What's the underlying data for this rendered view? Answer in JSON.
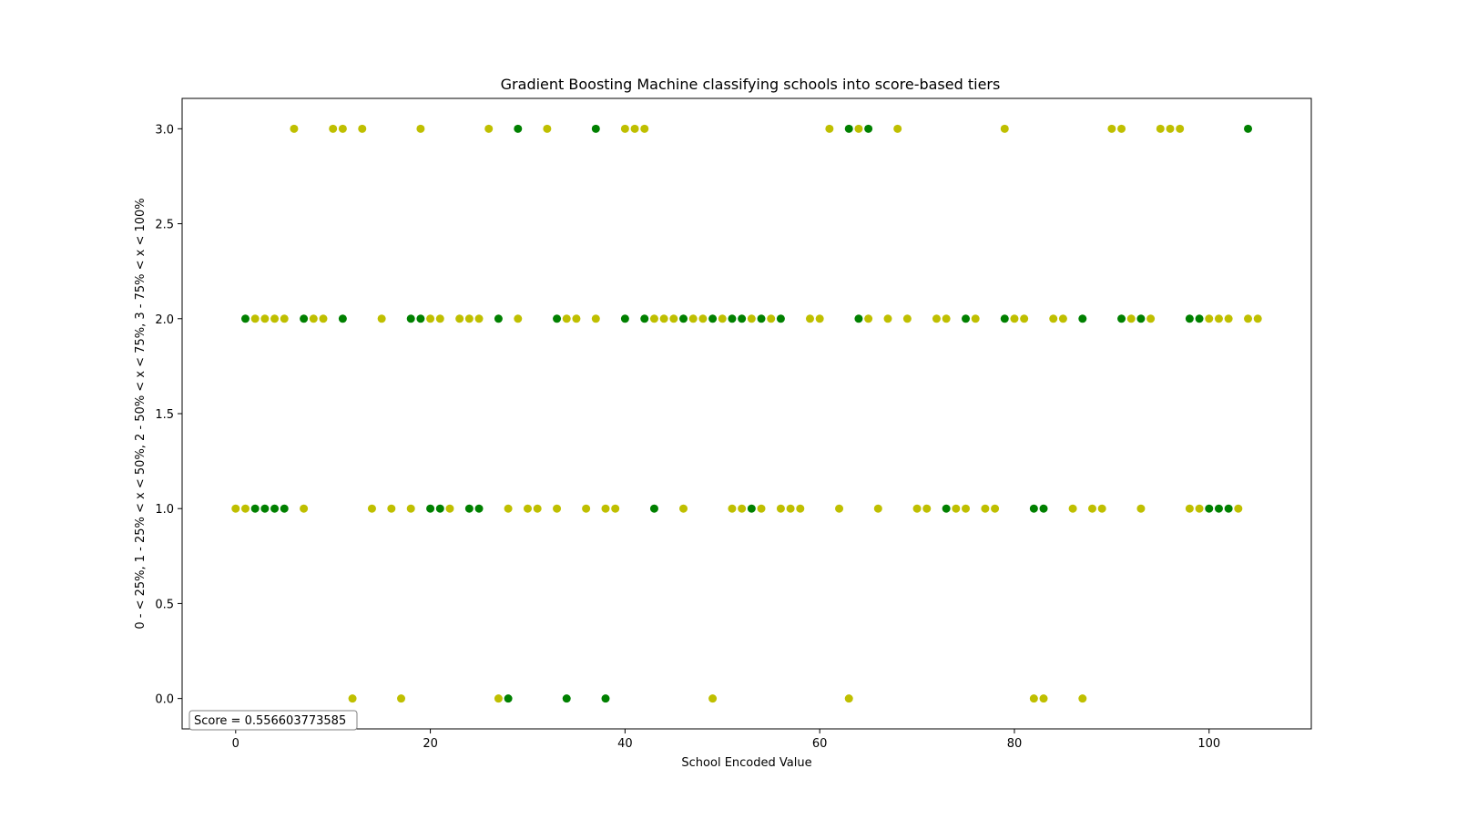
{
  "chart_data": {
    "type": "scatter",
    "title": "Gradient Boosting Machine classifying schools into score-based tiers",
    "xlabel": "School Encoded Value",
    "ylabel": "0 - < 25%, 1 - 25% < x < 50%, 2 - 50% < x < 75%, 3 - 75% < x < 100%",
    "xlim": [
      -5.5,
      110.5
    ],
    "ylim": [
      -0.16,
      3.16
    ],
    "xticks": [
      0,
      20,
      40,
      60,
      80,
      100
    ],
    "xtick_labels": [
      "0",
      "20",
      "40",
      "60",
      "80",
      "100"
    ],
    "yticks": [
      0.0,
      0.5,
      1.0,
      1.5,
      2.0,
      2.5,
      3.0
    ],
    "ytick_labels": [
      "0.0",
      "0.5",
      "1.0",
      "1.5",
      "2.0",
      "2.5",
      "3.0"
    ],
    "grid": false,
    "annotation": "Score = 0.556603773585",
    "colors": {
      "yellow": "#bfbf00",
      "green": "#008000"
    },
    "series": [
      {
        "color": "#bfbf00",
        "points": [
          [
            6,
            3
          ],
          [
            10,
            3
          ],
          [
            11,
            3
          ],
          [
            13,
            3
          ],
          [
            19,
            3
          ],
          [
            26,
            3
          ],
          [
            32,
            3
          ],
          [
            40,
            3
          ],
          [
            41,
            3
          ],
          [
            42,
            3
          ],
          [
            61,
            3
          ],
          [
            64,
            3
          ],
          [
            68,
            3
          ],
          [
            79,
            3
          ],
          [
            90,
            3
          ],
          [
            91,
            3
          ],
          [
            95,
            3
          ],
          [
            96,
            3
          ],
          [
            97,
            3
          ],
          [
            2,
            2
          ],
          [
            3,
            2
          ],
          [
            4,
            2
          ],
          [
            5,
            2
          ],
          [
            8,
            2
          ],
          [
            9,
            2
          ],
          [
            15,
            2
          ],
          [
            20,
            2
          ],
          [
            21,
            2
          ],
          [
            23,
            2
          ],
          [
            24,
            2
          ],
          [
            25,
            2
          ],
          [
            29,
            2
          ],
          [
            34,
            2
          ],
          [
            35,
            2
          ],
          [
            37,
            2
          ],
          [
            43,
            2
          ],
          [
            44,
            2
          ],
          [
            45,
            2
          ],
          [
            47,
            2
          ],
          [
            48,
            2
          ],
          [
            50,
            2
          ],
          [
            53,
            2
          ],
          [
            55,
            2
          ],
          [
            59,
            2
          ],
          [
            60,
            2
          ],
          [
            65,
            2
          ],
          [
            67,
            2
          ],
          [
            69,
            2
          ],
          [
            72,
            2
          ],
          [
            73,
            2
          ],
          [
            76,
            2
          ],
          [
            80,
            2
          ],
          [
            81,
            2
          ],
          [
            84,
            2
          ],
          [
            85,
            2
          ],
          [
            92,
            2
          ],
          [
            94,
            2
          ],
          [
            100,
            2
          ],
          [
            101,
            2
          ],
          [
            102,
            2
          ],
          [
            104,
            2
          ],
          [
            105,
            2
          ],
          [
            0,
            1
          ],
          [
            1,
            1
          ],
          [
            7,
            1
          ],
          [
            14,
            1
          ],
          [
            16,
            1
          ],
          [
            18,
            1
          ],
          [
            22,
            1
          ],
          [
            28,
            1
          ],
          [
            30,
            1
          ],
          [
            31,
            1
          ],
          [
            33,
            1
          ],
          [
            36,
            1
          ],
          [
            38,
            1
          ],
          [
            39,
            1
          ],
          [
            46,
            1
          ],
          [
            51,
            1
          ],
          [
            52,
            1
          ],
          [
            54,
            1
          ],
          [
            56,
            1
          ],
          [
            57,
            1
          ],
          [
            58,
            1
          ],
          [
            62,
            1
          ],
          [
            66,
            1
          ],
          [
            70,
            1
          ],
          [
            71,
            1
          ],
          [
            74,
            1
          ],
          [
            75,
            1
          ],
          [
            77,
            1
          ],
          [
            78,
            1
          ],
          [
            86,
            1
          ],
          [
            88,
            1
          ],
          [
            89,
            1
          ],
          [
            93,
            1
          ],
          [
            98,
            1
          ],
          [
            99,
            1
          ],
          [
            103,
            1
          ],
          [
            12,
            0
          ],
          [
            17,
            0
          ],
          [
            27,
            0
          ],
          [
            49,
            0
          ],
          [
            63,
            0
          ],
          [
            82,
            0
          ],
          [
            83,
            0
          ],
          [
            87,
            0
          ]
        ]
      },
      {
        "color": "#008000",
        "points": [
          [
            29,
            3
          ],
          [
            37,
            3
          ],
          [
            63,
            3
          ],
          [
            65,
            3
          ],
          [
            104,
            3
          ],
          [
            1,
            2
          ],
          [
            7,
            2
          ],
          [
            11,
            2
          ],
          [
            18,
            2
          ],
          [
            19,
            2
          ],
          [
            27,
            2
          ],
          [
            33,
            2
          ],
          [
            40,
            2
          ],
          [
            42,
            2
          ],
          [
            46,
            2
          ],
          [
            49,
            2
          ],
          [
            51,
            2
          ],
          [
            52,
            2
          ],
          [
            54,
            2
          ],
          [
            56,
            2
          ],
          [
            64,
            2
          ],
          [
            75,
            2
          ],
          [
            79,
            2
          ],
          [
            87,
            2
          ],
          [
            91,
            2
          ],
          [
            93,
            2
          ],
          [
            98,
            2
          ],
          [
            99,
            2
          ],
          [
            2,
            1
          ],
          [
            3,
            1
          ],
          [
            4,
            1
          ],
          [
            5,
            1
          ],
          [
            20,
            1
          ],
          [
            21,
            1
          ],
          [
            24,
            1
          ],
          [
            25,
            1
          ],
          [
            43,
            1
          ],
          [
            53,
            1
          ],
          [
            73,
            1
          ],
          [
            82,
            1
          ],
          [
            83,
            1
          ],
          [
            100,
            1
          ],
          [
            101,
            1
          ],
          [
            102,
            1
          ],
          [
            28,
            0
          ],
          [
            34,
            0
          ],
          [
            38,
            0
          ]
        ]
      }
    ]
  }
}
